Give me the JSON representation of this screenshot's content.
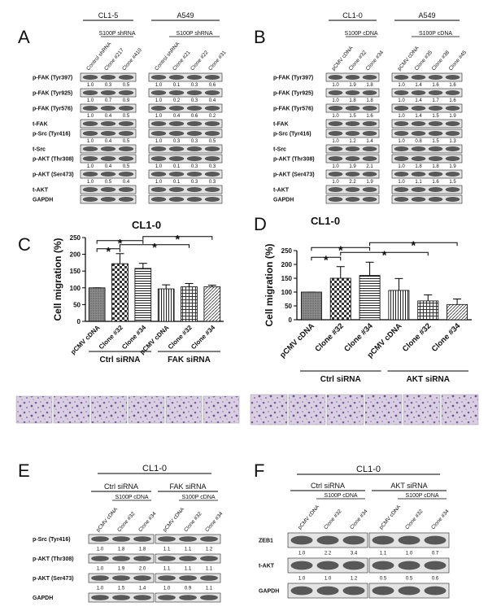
{
  "panel_labels": [
    "A",
    "B",
    "C",
    "D",
    "E",
    "F"
  ],
  "blots": {
    "A": {
      "groups": [
        {
          "name": "CL1-5",
          "subgroup": "S100P shRNA",
          "lanes": [
            "Control shRNA",
            "Clone #217",
            "Clone #410"
          ]
        },
        {
          "name": "A549",
          "subgroup": "S100P shRNA",
          "lanes": [
            "Control shRNA",
            "Clone #21",
            "Clone #22",
            "Clone #31"
          ]
        }
      ],
      "rows": [
        {
          "name": "p-FAK (Tyr397)",
          "values": [
            [
              "1.0",
              "0.3",
              "0.5"
            ],
            [
              "1.0",
              "0.1",
              "0.3",
              "0.6"
            ]
          ]
        },
        {
          "name": "p-FAK (Tyr925)",
          "values": [
            [
              "1.0",
              "0.7",
              "0.9"
            ],
            [
              "1.0",
              "0.2",
              "0.3",
              "0.4"
            ]
          ]
        },
        {
          "name": "p-FAK (Tyr576)",
          "values": [
            [
              "1.0",
              "0.4",
              "0.5"
            ],
            [
              "1.0",
              "0.4",
              "0.6",
              "0.2"
            ]
          ]
        },
        {
          "name": "t-FAK"
        },
        {
          "name": "p-Src (Tyr416)",
          "values": [
            [
              "1.0",
              "0.4",
              "0.5"
            ],
            [
              "1.0",
              "0.3",
              "0.3",
              "0.5"
            ]
          ]
        },
        {
          "name": "t-Src"
        },
        {
          "name": "p-AKT (Thr308)",
          "values": [
            [
              "1.0",
              "0.4",
              "0.5"
            ],
            [
              "1.0",
              "0.1",
              "0.3",
              "0.3"
            ]
          ]
        },
        {
          "name": "p-AKT (Ser473)",
          "values": [
            [
              "1.0",
              "0.5",
              "0.4"
            ],
            [
              "1.0",
              "0.1",
              "0.3",
              "0.3"
            ]
          ]
        },
        {
          "name": "t-AKT"
        },
        {
          "name": "GAPDH"
        }
      ]
    },
    "B": {
      "groups": [
        {
          "name": "CL1-0",
          "subgroup": "S100P cDNA",
          "lanes": [
            "pCMV cDNA",
            "Clone #32",
            "Clone #34"
          ]
        },
        {
          "name": "A549",
          "subgroup": "S100P cDNA",
          "lanes": [
            "pCMV cDNA",
            "Clone #35",
            "Clone #38",
            "Clone #45"
          ]
        }
      ],
      "rows": [
        {
          "name": "p-FAK (Tyr397)",
          "values": [
            [
              "1.0",
              "1.9",
              "1.8"
            ],
            [
              "1.0",
              "1.4",
              "1.6",
              "1.6"
            ]
          ]
        },
        {
          "name": "p-FAK (Tyr925)",
          "values": [
            [
              "1.0",
              "1.8",
              "1.8"
            ],
            [
              "1.0",
              "1.4",
              "1.7",
              "1.6"
            ]
          ]
        },
        {
          "name": "p-FAK (Tyr576)",
          "values": [
            [
              "1.0",
              "1.5",
              "1.6"
            ],
            [
              "1.0",
              "1.4",
              "1.5",
              "1.9"
            ]
          ]
        },
        {
          "name": "t-FAK"
        },
        {
          "name": "p-Src (Tyr416)",
          "values": [
            [
              "1.0",
              "1.2",
              "1.4"
            ],
            [
              "1.0",
              "0.8",
              "1.5",
              "1.3"
            ]
          ]
        },
        {
          "name": "t-Src"
        },
        {
          "name": "p-AKT (Thr308)",
          "values": [
            [
              "1.0",
              "1.9",
              "2.1"
            ],
            [
              "1.0",
              "1.8",
              "1.8",
              "1.9"
            ]
          ]
        },
        {
          "name": "p-AKT (Ser473)",
          "values": [
            [
              "1.0",
              "2.2",
              "1.9"
            ],
            [
              "1.0",
              "1.1",
              "1.6",
              "1.5"
            ]
          ]
        },
        {
          "name": "t-AKT"
        },
        {
          "name": "GAPDH"
        }
      ]
    },
    "E": {
      "header": "CL1-0",
      "groups": [
        {
          "name": "Ctrl siRNA",
          "subgroup": "S100P cDNA",
          "lanes": [
            "pCMV cDNA",
            "Clone #32",
            "Clone #34"
          ]
        },
        {
          "name": "FAK siRNA",
          "subgroup": "S100P cDNA",
          "lanes": [
            "pCMV cDNA",
            "Clone #32",
            "Clone #34"
          ]
        }
      ],
      "rows": [
        {
          "name": "p-Src (Tyr416)",
          "values": [
            [
              "1.0",
              "1.8",
              "1.8"
            ],
            [
              "1.1",
              "1.1",
              "1.2"
            ]
          ]
        },
        {
          "name": "p-AKT (Thr308)",
          "values": [
            [
              "1.0",
              "1.9",
              "2.0"
            ],
            [
              "1.1",
              "1.1",
              "1.1"
            ]
          ]
        },
        {
          "name": "p-AKT (Ser473)",
          "values": [
            [
              "1.0",
              "1.5",
              "1.4"
            ],
            [
              "1.0",
              "0.9",
              "1.1"
            ]
          ]
        },
        {
          "name": "GAPDH"
        }
      ]
    },
    "F": {
      "header": "CL1-0",
      "groups": [
        {
          "name": "Ctrl siRNA",
          "subgroup": "S100P cDNA",
          "lanes": [
            "pCMV cDNA",
            "Clone #32",
            "Clone #34"
          ]
        },
        {
          "name": "AKT siRNA",
          "subgroup": "S100P cDNA",
          "lanes": [
            "pCMV cDNA",
            "Clone #32",
            "Clone #34"
          ]
        }
      ],
      "rows": [
        {
          "name": "ZEB1",
          "values": [
            [
              "1.0",
              "2.2",
              "3.4"
            ],
            [
              "1.1",
              "1.0",
              "0.7"
            ]
          ]
        },
        {
          "name": "t-AKT",
          "values": [
            [
              "1.0",
              "1.0",
              "1.2"
            ],
            [
              "0.5",
              "0.5",
              "0.6"
            ]
          ]
        },
        {
          "name": "GAPDH"
        }
      ]
    }
  },
  "chart_data": [
    {
      "type": "bar",
      "title": "CL1-0",
      "y_label": "Cell migration (%)",
      "categories": [
        "pCMV cDNA",
        "Clone #32",
        "Clone #34",
        "pCMV cDNA",
        "Clone #32",
        "Clone #34"
      ],
      "groups": [
        "Ctrl siRNA",
        "FAK siRNA"
      ],
      "values": [
        100,
        172,
        158,
        97,
        103,
        103
      ],
      "errors": [
        0,
        30,
        15,
        12,
        10,
        5
      ],
      "ylim": [
        0,
        250
      ],
      "yticks": [
        0,
        50,
        100,
        150,
        200,
        250
      ],
      "comparisons": [
        {
          "pair": [
            0,
            1
          ],
          "label": "*"
        },
        {
          "pair": [
            1,
            4
          ],
          "label": "*"
        },
        {
          "pair": [
            0,
            2
          ],
          "label": "*"
        },
        {
          "pair": [
            2,
            5
          ],
          "label": "*"
        }
      ]
    },
    {
      "type": "bar",
      "title": "CL1-0",
      "y_label": "Cell migration (%)",
      "categories": [
        "pCMV cDNA",
        "Clone #32",
        "Clone #34",
        "pCMV cDNA",
        "Clone #32",
        "Clone #34"
      ],
      "groups": [
        "Ctrl siRNA",
        "AKT siRNA"
      ],
      "values": [
        100,
        150,
        160,
        106,
        68,
        55
      ],
      "errors": [
        0,
        42,
        48,
        43,
        22,
        20
      ],
      "ylim": [
        0,
        250
      ],
      "yticks": [
        0,
        50,
        100,
        150,
        200,
        250
      ],
      "comparisons": [
        {
          "pair": [
            0,
            1
          ],
          "label": "*"
        },
        {
          "pair": [
            1,
            4
          ],
          "label": "*"
        },
        {
          "pair": [
            0,
            2
          ],
          "label": "*"
        },
        {
          "pair": [
            2,
            5
          ],
          "label": "*"
        }
      ]
    }
  ]
}
